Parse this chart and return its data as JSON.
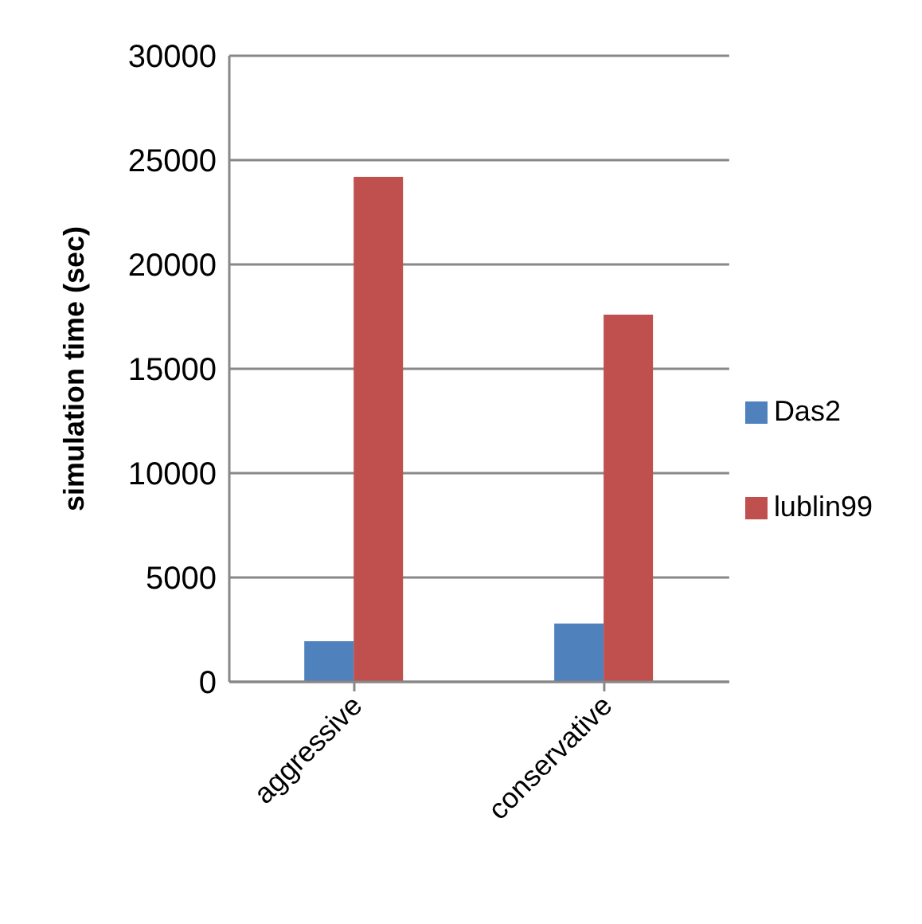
{
  "chart_data": {
    "type": "bar",
    "ylabel": "simulation time (sec)",
    "categories": [
      "aggressive",
      "conservative"
    ],
    "series": [
      {
        "name": "Das2",
        "color": "#4f81bd",
        "values": [
          1950,
          2800
        ]
      },
      {
        "name": "lublin99",
        "color": "#c0504d",
        "values": [
          24200,
          17600
        ]
      }
    ],
    "ylim": [
      0,
      30000
    ],
    "yticks": [
      0,
      5000,
      10000,
      15000,
      20000,
      25000,
      30000
    ],
    "grid": "y",
    "legend": "right"
  }
}
